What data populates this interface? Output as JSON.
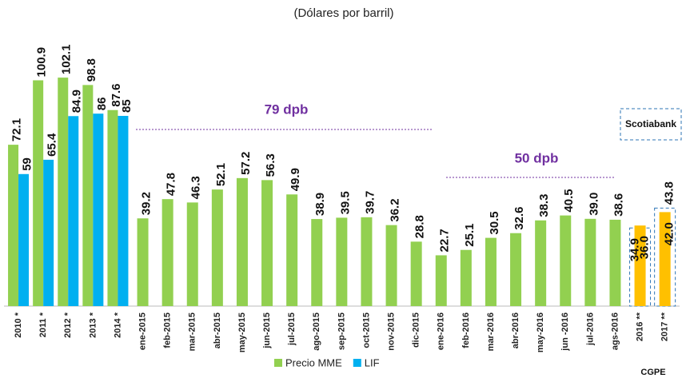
{
  "chart_data": {
    "type": "bar",
    "title": "(Dólares por barril)",
    "categories": [
      "2010 *",
      "2011 *",
      "2012 *",
      "2013 *",
      "2014 *",
      "ene-2015",
      "feb-2015",
      "mar-2015",
      "abr-2015",
      "may-2015",
      "jun-2015",
      "jul-2015",
      "ago-2015",
      "sep-2015",
      "oct-2015",
      "nov-2015",
      "dic-2015",
      "ene-2016",
      "feb-2016",
      "mar-2016",
      "abr-2016",
      "may-2016",
      "jun -2016",
      "jul-2016",
      "ags-2016",
      "2016 **",
      "2017 **"
    ],
    "series": [
      {
        "name": "Precio MME",
        "color": "#92d050",
        "values": [
          72.1,
          100.9,
          102.1,
          98.8,
          87.6,
          39.2,
          47.8,
          46.3,
          52.1,
          57.2,
          56.3,
          49.9,
          38.9,
          39.5,
          39.7,
          36.2,
          28.8,
          22.7,
          25.1,
          30.5,
          32.6,
          38.3,
          40.5,
          39.0,
          38.6,
          null,
          null
        ],
        "value_labels": [
          "72.1",
          "100.9",
          "102.1",
          "98.8",
          "87.6",
          "39.2",
          "47.8",
          "46.3",
          "52.1",
          "57.2",
          "56.3",
          "49.9",
          "38.9",
          "39.5",
          "39.7",
          "36.2",
          "28.8",
          "22.7",
          "25.1",
          "30.5",
          "32.6",
          "38.3",
          "40.5",
          "39.0",
          "38.6",
          null,
          null
        ]
      },
      {
        "name": "LIF",
        "color": "#00b0f0",
        "values": [
          59,
          65.4,
          84.9,
          86,
          85,
          null,
          null,
          null,
          null,
          null,
          null,
          null,
          null,
          null,
          null,
          null,
          null,
          null,
          null,
          null,
          null,
          null,
          null,
          null,
          null,
          null,
          null
        ]
      }
    ],
    "forecasts": [
      {
        "name": "CGPE",
        "color": "#ffc000",
        "values": [
          null,
          null,
          null,
          null,
          null,
          null,
          null,
          null,
          null,
          null,
          null,
          null,
          null,
          null,
          null,
          null,
          null,
          null,
          null,
          null,
          null,
          null,
          null,
          null,
          null,
          36.0,
          42.0
        ],
        "value_labels": [
          null,
          null,
          null,
          null,
          null,
          null,
          null,
          null,
          null,
          null,
          null,
          null,
          null,
          null,
          null,
          null,
          null,
          null,
          null,
          null,
          null,
          null,
          null,
          null,
          null,
          "36.0",
          "42.0"
        ]
      },
      {
        "name": "Scotiabank",
        "color": "#2e75b6",
        "values": [
          null,
          null,
          null,
          null,
          null,
          null,
          null,
          null,
          null,
          null,
          null,
          null,
          null,
          null,
          null,
          null,
          null,
          null,
          null,
          null,
          null,
          null,
          null,
          null,
          null,
          34.9,
          43.8
        ]
      }
    ],
    "annotations": [
      "79 dpb",
      "50 dpb"
    ],
    "ylim": [
      0,
      105
    ]
  }
}
